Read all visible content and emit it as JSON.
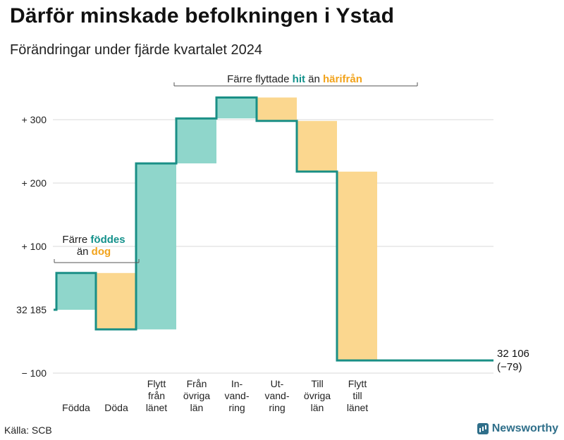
{
  "title": "Därför minskade befolkningen i Ystad",
  "subtitle": "Förändringar under fjärde kvartalet 2024",
  "source": "Källa: SCB",
  "brand": "Newsworthy",
  "colors": {
    "inflow": "#8fd6cb",
    "outflow": "#fbd78f",
    "line": "#1a8f86",
    "hit": "#13918b",
    "harifran": "#f2a31b"
  },
  "annotations": {
    "births": {
      "line1_pre": "Färre ",
      "line1_em": "föddes",
      "line2_pre": "än ",
      "line2_em": "dog"
    },
    "moves": {
      "pre": "Färre flyttade ",
      "em1": "hit",
      "mid": " än ",
      "em2": "härifrån"
    }
  },
  "end_label": {
    "value": "32 106",
    "change": "(−79)"
  },
  "chart_data": {
    "type": "waterfall",
    "baseline": 32185,
    "y_ticks": [
      {
        "value": 300,
        "label": "+ 300"
      },
      {
        "value": 200,
        "label": "+ 200"
      },
      {
        "value": 100,
        "label": "+ 100"
      },
      {
        "value": 0,
        "label": "32 185"
      },
      {
        "value": -100,
        "label": "− 100"
      }
    ],
    "ylim": [
      -125,
      340
    ],
    "steps": [
      {
        "lines": [
          "Födda"
        ],
        "value": 58,
        "kind": "in"
      },
      {
        "lines": [
          "Döda"
        ],
        "value": -89,
        "kind": "out"
      },
      {
        "lines": [
          "Flytt",
          "från",
          "länet"
        ],
        "value": 262,
        "kind": "in"
      },
      {
        "lines": [
          "Från",
          "övriga",
          "län"
        ],
        "value": 71,
        "kind": "in"
      },
      {
        "lines": [
          "In-",
          "vand-",
          "ring"
        ],
        "value": 33,
        "kind": "in"
      },
      {
        "lines": [
          "Ut-",
          "vand-",
          "ring"
        ],
        "value": -37,
        "kind": "out"
      },
      {
        "lines": [
          "Till",
          "övriga",
          "län"
        ],
        "value": -80,
        "kind": "out"
      },
      {
        "lines": [
          "Flytt",
          "till",
          "länet"
        ],
        "value": -298,
        "kind": "out"
      }
    ],
    "end_value": 32106,
    "end_change": -79
  }
}
